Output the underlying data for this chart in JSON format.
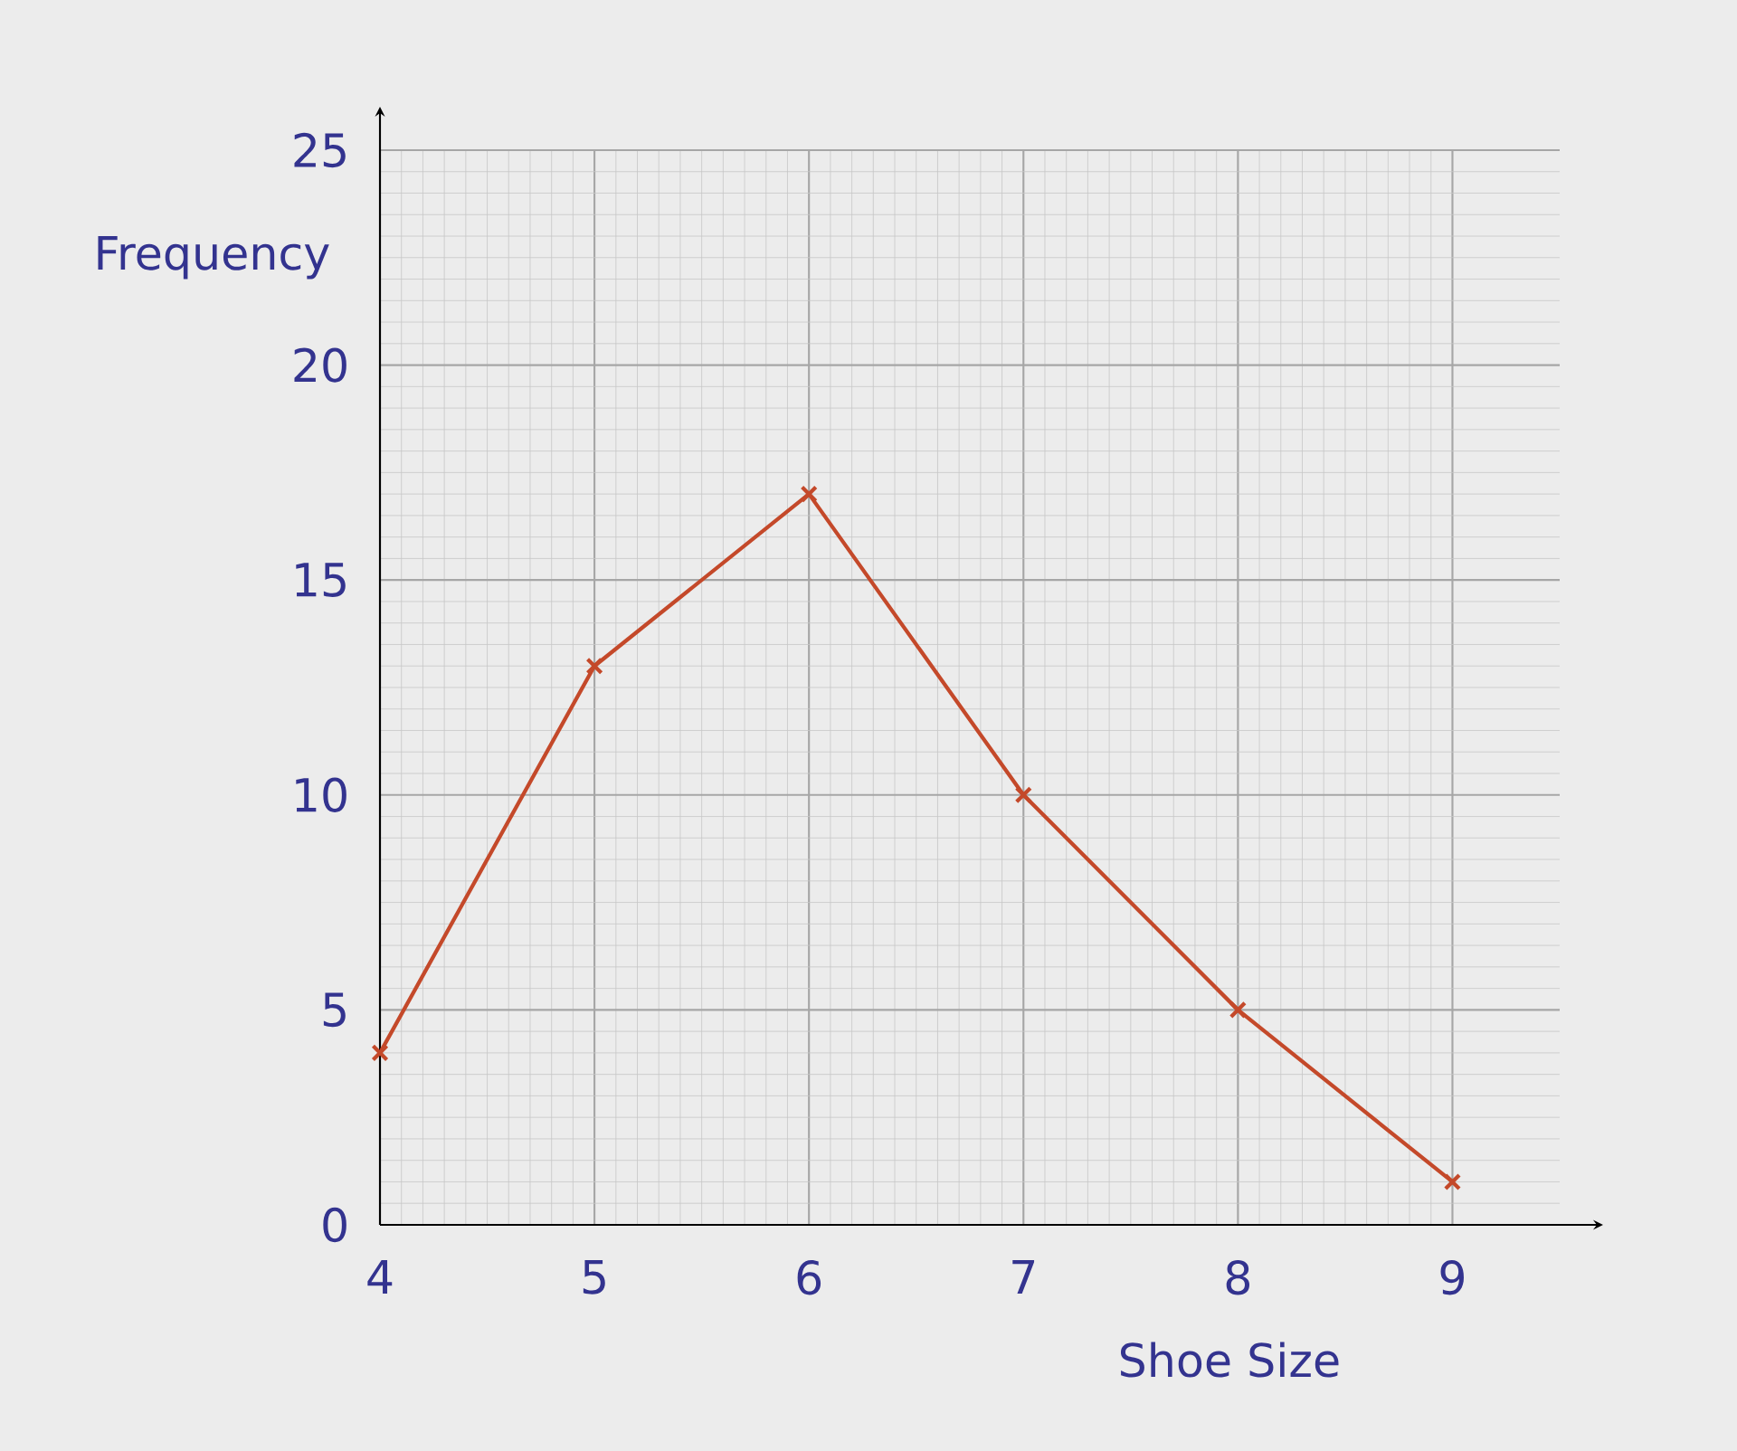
{
  "chart_data": {
    "type": "line",
    "xlabel": "Shoe Size",
    "ylabel": "Frequency",
    "x": [
      4,
      5,
      6,
      7,
      8,
      9
    ],
    "series": [
      {
        "color": "#c4492a",
        "values": [
          4,
          13,
          17,
          10,
          5,
          1
        ]
      }
    ],
    "xlim": [
      4,
      9.5
    ],
    "ylim": [
      0,
      25
    ],
    "xticks": [
      4,
      5,
      6,
      7,
      8,
      9
    ],
    "yticks": [
      0,
      5,
      10,
      15,
      20,
      25
    ],
    "grid": true,
    "marker": "cross",
    "line_style": "solid"
  }
}
